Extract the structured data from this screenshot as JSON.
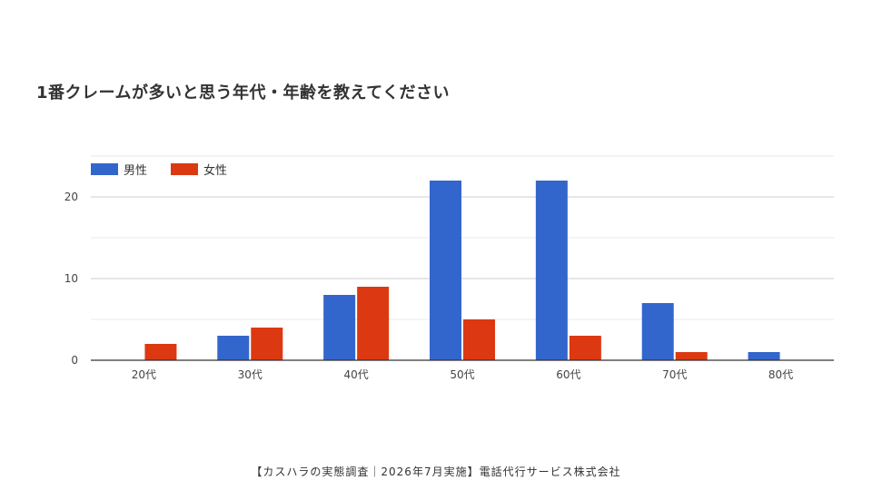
{
  "title": "1番クレームが多いと思う年代・年齢を教えてください",
  "footer": "【カスハラの実態調査｜2026年7月実施】電話代行サービス株式会社",
  "colors": {
    "male": "#3366cc",
    "female": "#dc3912",
    "grid": "#cccccc",
    "minor_grid": "#e8e8e8",
    "baseline": "#333333"
  },
  "chart_data": {
    "type": "bar",
    "categories": [
      "20代",
      "30代",
      "40代",
      "50代",
      "60代",
      "70代",
      "80代"
    ],
    "series": [
      {
        "name": "男性",
        "values": [
          0,
          3,
          8,
          22,
          22,
          7,
          1
        ]
      },
      {
        "name": "女性",
        "values": [
          2,
          4,
          9,
          5,
          3,
          1,
          0
        ]
      }
    ],
    "ylim": [
      0,
      25
    ],
    "yticks": [
      0,
      10,
      20
    ],
    "minor_yticks": [
      5,
      15,
      25
    ],
    "legend_position": "top-left",
    "grid": true
  }
}
